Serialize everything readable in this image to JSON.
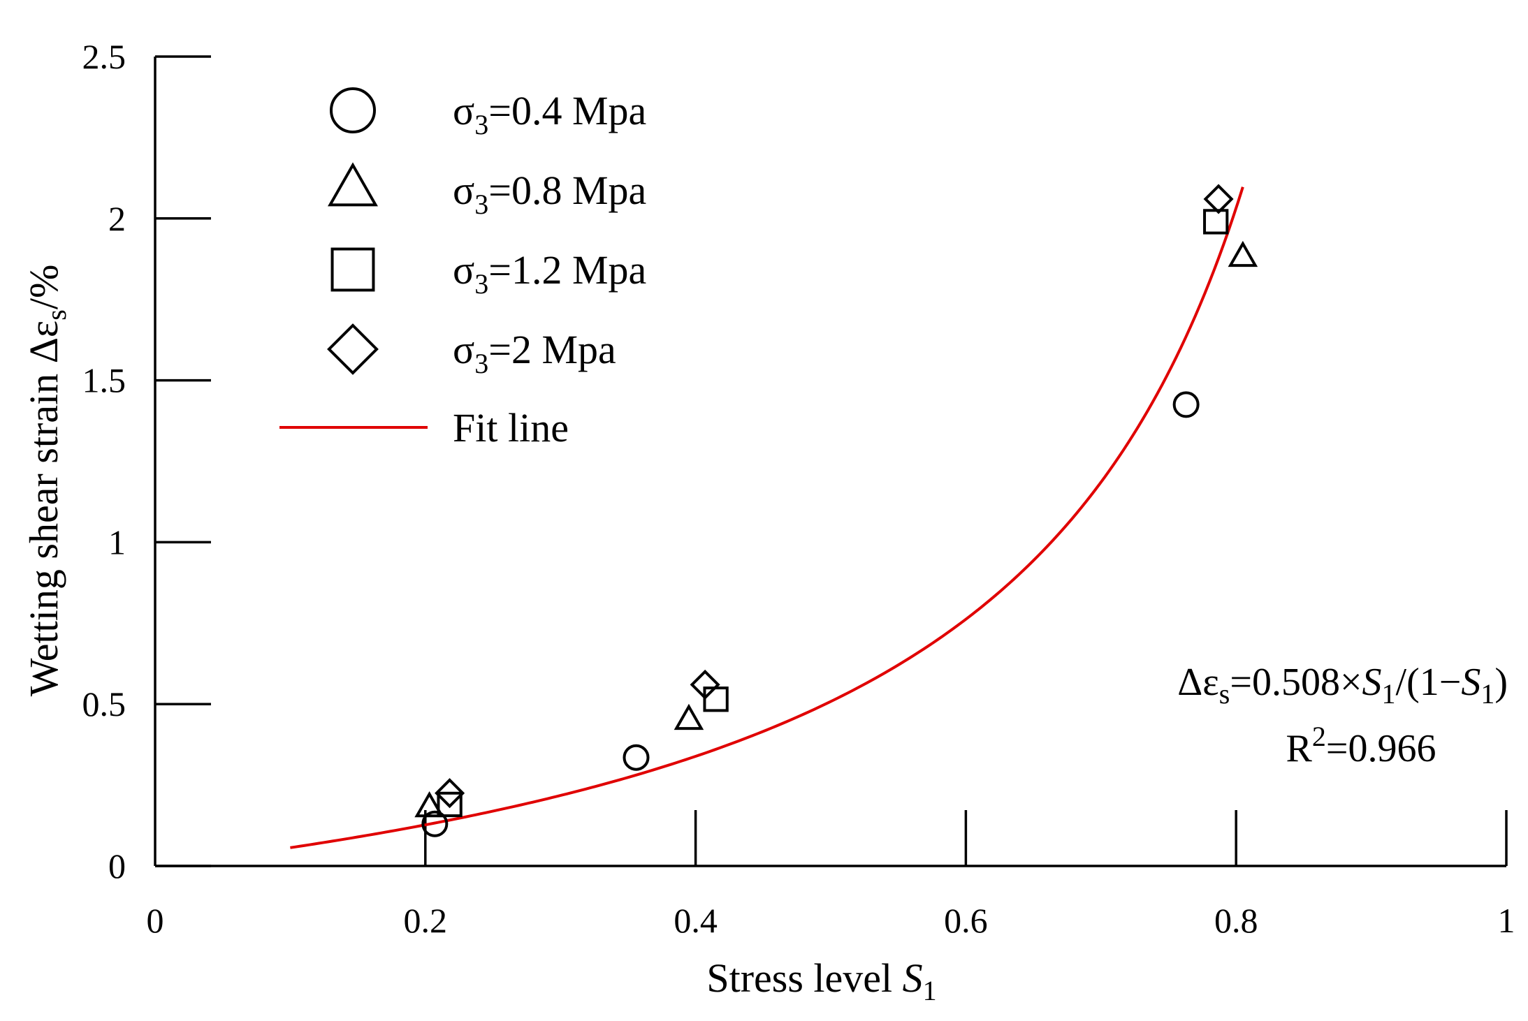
{
  "chart_data": {
    "type": "scatter",
    "xlabel": "Stress level ",
    "xlabel_var": "S",
    "xlabel_sub": "1",
    "ylabel": "Wetting shear strain Δε",
    "ylabel_sub": "s",
    "ylabel_unit": "/%",
    "xlim": [
      0,
      1
    ],
    "ylim": [
      0,
      2.5
    ],
    "xticks": [
      0,
      0.2,
      0.4,
      0.6,
      0.8,
      1
    ],
    "xtick_labels": [
      "0",
      "0.2",
      "0.4",
      "0.6",
      "0.8",
      "1"
    ],
    "yticks": [
      0,
      0.5,
      1,
      1.5,
      2,
      2.5
    ],
    "ytick_labels": [
      "0",
      "0.5",
      "1",
      "1.5",
      "2",
      "2.5"
    ],
    "series": [
      {
        "name": "σ3=0.4 Mpa",
        "label_prefix": "σ",
        "label_sub": "3",
        "label_suffix": "=0.4 Mpa",
        "marker": "circle",
        "points": [
          [
            0.207,
            0.13
          ],
          [
            0.356,
            0.335
          ],
          [
            0.763,
            1.425
          ]
        ]
      },
      {
        "name": "σ3=0.8 Mpa",
        "label_prefix": "σ",
        "label_sub": "3",
        "label_suffix": "=0.8 Mpa",
        "marker": "triangle",
        "points": [
          [
            0.203,
            0.18
          ],
          [
            0.395,
            0.45
          ],
          [
            0.805,
            1.88
          ]
        ]
      },
      {
        "name": "σ3=1.2 Mpa",
        "label_prefix": "σ",
        "label_sub": "3",
        "label_suffix": "=1.2 Mpa",
        "marker": "square",
        "points": [
          [
            0.218,
            0.19
          ],
          [
            0.415,
            0.515
          ],
          [
            0.785,
            1.99
          ]
        ]
      },
      {
        "name": "σ3=2 Mpa",
        "label_prefix": "σ",
        "label_sub": "3",
        "label_suffix": "=2 Mpa",
        "marker": "diamond",
        "points": [
          [
            0.218,
            0.225
          ],
          [
            0.407,
            0.56
          ],
          [
            0.787,
            2.06
          ]
        ]
      }
    ],
    "fit": {
      "name": "Fit line",
      "coefficient": 0.508,
      "x_range": [
        0.1,
        0.805
      ],
      "color": "#e00000"
    },
    "annotations": {
      "equation_prefix": "Δε",
      "equation_sub": "s",
      "equation_mid": "=0.508×",
      "equation_var": "S",
      "equation_var_sub": "1",
      "equation_paren": "/(1−",
      "equation_close": ")",
      "r2_prefix": "R",
      "r2_sup": "2",
      "r2_value": "=0.966"
    }
  }
}
